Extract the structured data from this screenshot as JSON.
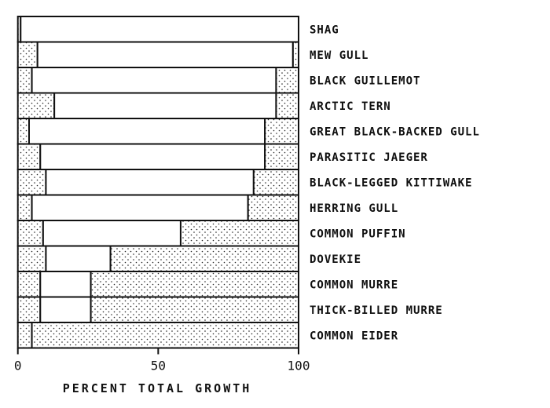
{
  "chart_data": {
    "type": "bar",
    "orientation": "horizontal",
    "stacked": true,
    "title": "",
    "xlabel": "PERCENT TOTAL GROWTH",
    "ylabel": "",
    "xlim": [
      0,
      100
    ],
    "xticks": [
      "0",
      "50",
      "100"
    ],
    "grid": false,
    "legend": "none",
    "categories": [
      "SHAG",
      "MEW GULL",
      "BLACK GUILLEMOT",
      "ARCTIC TERN",
      "GREAT BLACK-BACKED GULL",
      "PARASITIC JAEGER",
      "BLACK-LEGGED KITTIWAKE",
      "HERRING GULL",
      "COMMON PUFFIN",
      "DOVEKIE",
      "COMMON MURRE",
      "THICK-BILLED MURRE",
      "COMMON EIDER"
    ],
    "series": [
      {
        "pattern": "dotted",
        "values": [
          1,
          7,
          5,
          13,
          4,
          8,
          10,
          5,
          9,
          10,
          8,
          8,
          5
        ]
      },
      {
        "pattern": "plain",
        "values": [
          99,
          91,
          87,
          79,
          84,
          80,
          74,
          77,
          49,
          23,
          18,
          18,
          0
        ]
      },
      {
        "pattern": "dotted",
        "values": [
          0,
          2,
          8,
          8,
          12,
          12,
          16,
          18,
          42,
          67,
          74,
          74,
          95
        ]
      }
    ],
    "colors": {
      "ink": "#111111",
      "background": "#ffffff"
    }
  }
}
